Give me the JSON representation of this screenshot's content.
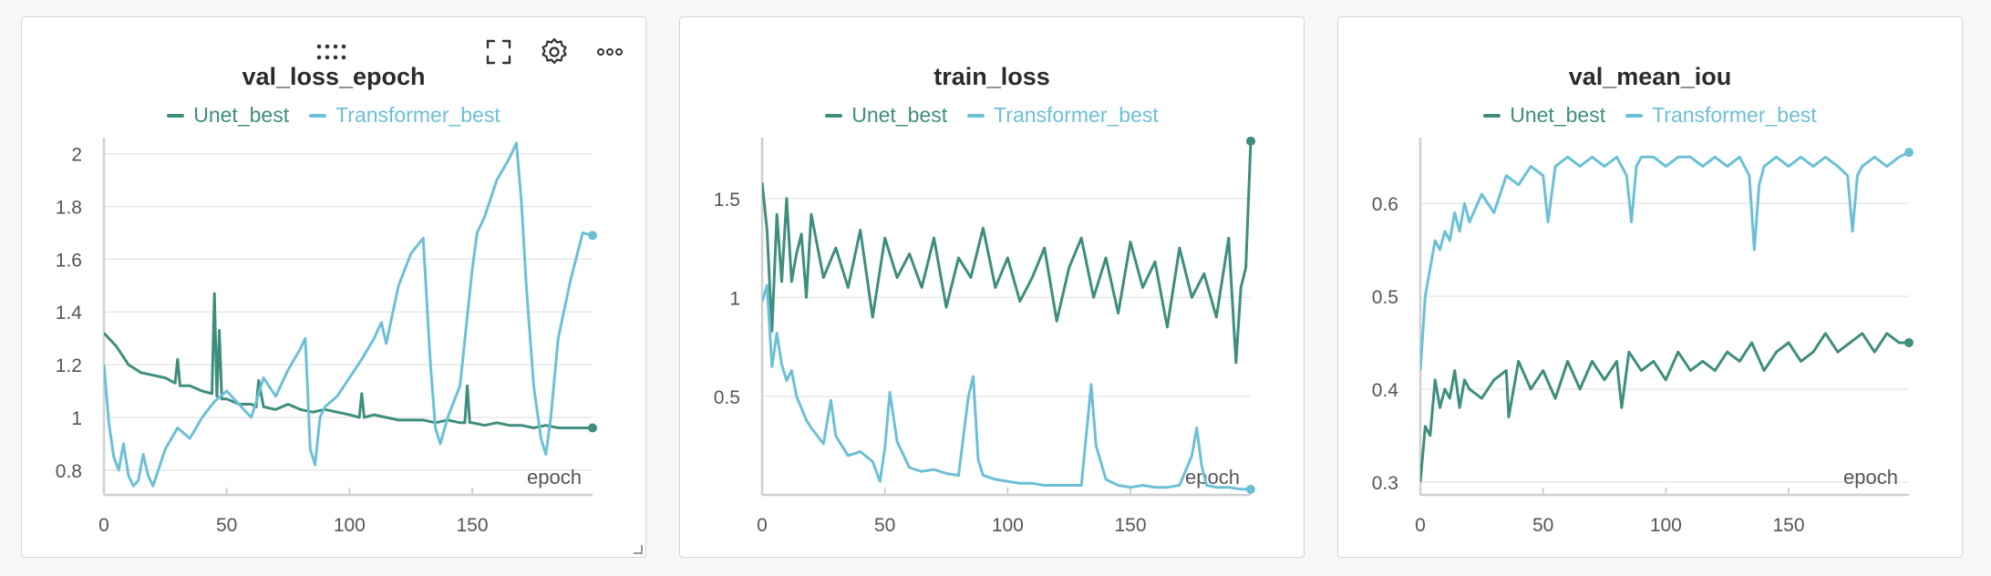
{
  "theme": {
    "unet_color": "#3e8e7e",
    "transformer_color": "#6cc0d6",
    "grid_color": "#e8e8e8",
    "axis_color": "#d0d0d0",
    "tick_text_color": "#555555"
  },
  "panels": [
    {
      "id": "val_loss_epoch",
      "has_toolbar": true
    },
    {
      "id": "train_loss",
      "has_toolbar": false
    },
    {
      "id": "val_mean_iou",
      "has_toolbar": false
    }
  ],
  "toolbar": {
    "drag_icon": "drag-handle-icon",
    "fullscreen_icon": "fullscreen-icon",
    "settings_icon": "gear-icon",
    "more_icon": "more-icon"
  },
  "chart_data": [
    {
      "type": "line",
      "title": "val_loss_epoch",
      "xlabel": "epoch",
      "ylabel": "",
      "xlim": [
        0,
        199
      ],
      "ylim": [
        0.72,
        2.04
      ],
      "x_ticks": [
        "0",
        "50",
        "100",
        "150"
      ],
      "x_tick_values": [
        0,
        50,
        100,
        150
      ],
      "y_ticks": [
        "0.8",
        "1",
        "1.2",
        "1.4",
        "1.6",
        "1.8",
        "2"
      ],
      "y_tick_values": [
        0.8,
        1.0,
        1.2,
        1.4,
        1.6,
        1.8,
        2.0
      ],
      "legend": [
        "Unet_best",
        "Transformer_best"
      ],
      "legend_position": "top-center",
      "grid": true,
      "series": [
        {
          "name": "Unet_best",
          "x": [
            0,
            5,
            10,
            15,
            20,
            25,
            29,
            30,
            31,
            35,
            40,
            44,
            45,
            46,
            47,
            48,
            50,
            55,
            60,
            62,
            63,
            65,
            70,
            75,
            80,
            85,
            90,
            95,
            100,
            104,
            105,
            106,
            110,
            115,
            120,
            125,
            130,
            135,
            140,
            145,
            147,
            148,
            149,
            150,
            155,
            160,
            165,
            170,
            175,
            180,
            185,
            190,
            195,
            199
          ],
          "y": [
            1.32,
            1.27,
            1.2,
            1.17,
            1.16,
            1.15,
            1.13,
            1.22,
            1.12,
            1.12,
            1.1,
            1.09,
            1.47,
            1.08,
            1.33,
            1.07,
            1.07,
            1.05,
            1.05,
            1.04,
            1.14,
            1.04,
            1.03,
            1.05,
            1.03,
            1.02,
            1.03,
            1.02,
            1.01,
            1.0,
            1.09,
            1.0,
            1.01,
            1.0,
            0.99,
            0.99,
            0.99,
            0.98,
            0.99,
            0.98,
            0.98,
            1.12,
            0.98,
            0.98,
            0.97,
            0.98,
            0.97,
            0.97,
            0.96,
            0.97,
            0.96,
            0.96,
            0.96,
            0.96
          ]
        },
        {
          "name": "Transformer_best",
          "x": [
            0,
            2,
            4,
            6,
            8,
            10,
            12,
            14,
            16,
            18,
            20,
            25,
            30,
            35,
            40,
            45,
            50,
            55,
            60,
            65,
            70,
            75,
            80,
            82,
            84,
            86,
            88,
            90,
            95,
            100,
            105,
            110,
            113,
            115,
            120,
            125,
            130,
            133,
            135,
            137,
            140,
            145,
            150,
            152,
            155,
            160,
            165,
            168,
            170,
            172,
            175,
            178,
            180,
            182,
            185,
            190,
            195,
            199
          ],
          "y": [
            1.2,
            0.98,
            0.85,
            0.8,
            0.9,
            0.78,
            0.74,
            0.76,
            0.86,
            0.78,
            0.74,
            0.88,
            0.96,
            0.92,
            1.0,
            1.06,
            1.1,
            1.05,
            1.0,
            1.15,
            1.08,
            1.18,
            1.26,
            1.3,
            0.88,
            0.82,
            1.0,
            1.04,
            1.08,
            1.15,
            1.22,
            1.3,
            1.36,
            1.28,
            1.5,
            1.62,
            1.68,
            1.2,
            0.96,
            0.9,
            1.0,
            1.12,
            1.56,
            1.7,
            1.76,
            1.9,
            1.98,
            2.04,
            1.82,
            1.5,
            1.12,
            0.92,
            0.86,
            1.0,
            1.3,
            1.52,
            1.7,
            1.69
          ]
        }
      ]
    },
    {
      "type": "line",
      "title": "train_loss",
      "xlabel": "epoch",
      "ylabel": "",
      "xlim": [
        0,
        199
      ],
      "ylim": [
        0.02,
        1.78
      ],
      "x_ticks": [
        "0",
        "50",
        "100",
        "150"
      ],
      "x_tick_values": [
        0,
        50,
        100,
        150
      ],
      "y_ticks": [
        "0.5",
        "1",
        "1.5"
      ],
      "y_tick_values": [
        0.5,
        1.0,
        1.5
      ],
      "legend": [
        "Unet_best",
        "Transformer_best"
      ],
      "legend_position": "top-center",
      "grid": true,
      "series": [
        {
          "name": "Unet_best",
          "x": [
            0,
            2,
            4,
            6,
            8,
            10,
            12,
            14,
            16,
            18,
            20,
            25,
            30,
            35,
            40,
            45,
            50,
            55,
            60,
            65,
            70,
            75,
            80,
            85,
            90,
            95,
            100,
            105,
            110,
            115,
            120,
            125,
            130,
            135,
            140,
            145,
            150,
            155,
            160,
            165,
            170,
            175,
            180,
            185,
            190,
            193,
            195,
            197,
            199
          ],
          "y": [
            1.58,
            1.34,
            0.83,
            1.42,
            1.08,
            1.5,
            1.08,
            1.22,
            1.32,
            1.0,
            1.42,
            1.1,
            1.25,
            1.05,
            1.34,
            0.9,
            1.3,
            1.1,
            1.22,
            1.05,
            1.3,
            0.95,
            1.2,
            1.1,
            1.35,
            1.05,
            1.2,
            0.98,
            1.1,
            1.25,
            0.88,
            1.15,
            1.3,
            1.0,
            1.2,
            0.92,
            1.28,
            1.05,
            1.18,
            0.85,
            1.25,
            1.0,
            1.12,
            0.9,
            1.3,
            0.67,
            1.05,
            1.15,
            1.79
          ]
        },
        {
          "name": "Transformer_best",
          "x": [
            0,
            2,
            4,
            6,
            8,
            10,
            12,
            14,
            16,
            18,
            20,
            25,
            28,
            30,
            35,
            40,
            45,
            48,
            50,
            52,
            55,
            60,
            65,
            70,
            75,
            80,
            84,
            86,
            88,
            90,
            95,
            100,
            105,
            110,
            115,
            120,
            125,
            130,
            132,
            134,
            136,
            140,
            145,
            150,
            155,
            160,
            165,
            170,
            175,
            177,
            179,
            181,
            185,
            190,
            195,
            199
          ],
          "y": [
            0.98,
            1.06,
            0.65,
            0.82,
            0.66,
            0.58,
            0.63,
            0.5,
            0.44,
            0.38,
            0.34,
            0.26,
            0.48,
            0.3,
            0.2,
            0.22,
            0.17,
            0.07,
            0.24,
            0.52,
            0.27,
            0.14,
            0.12,
            0.13,
            0.11,
            0.1,
            0.5,
            0.6,
            0.18,
            0.1,
            0.08,
            0.07,
            0.06,
            0.06,
            0.05,
            0.05,
            0.05,
            0.05,
            0.3,
            0.56,
            0.25,
            0.08,
            0.05,
            0.04,
            0.05,
            0.04,
            0.04,
            0.05,
            0.2,
            0.34,
            0.15,
            0.05,
            0.04,
            0.04,
            0.03,
            0.03
          ]
        }
      ]
    },
    {
      "type": "line",
      "title": "val_mean_iou",
      "xlabel": "epoch",
      "ylabel": "",
      "xlim": [
        0,
        199
      ],
      "ylim": [
        0.29,
        0.665
      ],
      "x_ticks": [
        "0",
        "50",
        "100",
        "150"
      ],
      "x_tick_values": [
        0,
        50,
        100,
        150
      ],
      "y_ticks": [
        "0.3",
        "0.4",
        "0.5",
        "0.6"
      ],
      "y_tick_values": [
        0.3,
        0.4,
        0.5,
        0.6
      ],
      "legend": [
        "Unet_best",
        "Transformer_best"
      ],
      "legend_position": "top-center",
      "grid": true,
      "series": [
        {
          "name": "Unet_best",
          "x": [
            0,
            2,
            4,
            6,
            8,
            10,
            12,
            14,
            16,
            18,
            20,
            25,
            30,
            35,
            36,
            40,
            45,
            50,
            55,
            60,
            65,
            70,
            75,
            80,
            82,
            85,
            90,
            95,
            100,
            105,
            110,
            115,
            120,
            125,
            130,
            135,
            140,
            145,
            150,
            155,
            160,
            165,
            170,
            175,
            180,
            185,
            190,
            195,
            199
          ],
          "y": [
            0.3,
            0.36,
            0.35,
            0.41,
            0.38,
            0.4,
            0.39,
            0.42,
            0.38,
            0.41,
            0.4,
            0.39,
            0.41,
            0.42,
            0.37,
            0.43,
            0.4,
            0.42,
            0.39,
            0.43,
            0.4,
            0.43,
            0.41,
            0.43,
            0.38,
            0.44,
            0.42,
            0.43,
            0.41,
            0.44,
            0.42,
            0.43,
            0.42,
            0.44,
            0.43,
            0.45,
            0.42,
            0.44,
            0.45,
            0.43,
            0.44,
            0.46,
            0.44,
            0.45,
            0.46,
            0.44,
            0.46,
            0.45,
            0.45
          ]
        },
        {
          "name": "Transformer_best",
          "x": [
            0,
            2,
            4,
            6,
            8,
            10,
            12,
            14,
            16,
            18,
            20,
            25,
            30,
            35,
            40,
            45,
            50,
            52,
            55,
            60,
            65,
            70,
            75,
            80,
            84,
            86,
            88,
            90,
            95,
            100,
            105,
            110,
            115,
            120,
            125,
            130,
            134,
            136,
            138,
            140,
            145,
            150,
            155,
            160,
            165,
            170,
            174,
            176,
            178,
            180,
            185,
            190,
            195,
            199
          ],
          "y": [
            0.42,
            0.5,
            0.53,
            0.56,
            0.55,
            0.57,
            0.56,
            0.59,
            0.57,
            0.6,
            0.58,
            0.61,
            0.59,
            0.63,
            0.62,
            0.64,
            0.63,
            0.58,
            0.64,
            0.65,
            0.64,
            0.65,
            0.64,
            0.65,
            0.63,
            0.58,
            0.64,
            0.65,
            0.65,
            0.64,
            0.65,
            0.65,
            0.64,
            0.65,
            0.64,
            0.65,
            0.63,
            0.55,
            0.62,
            0.64,
            0.65,
            0.64,
            0.65,
            0.64,
            0.65,
            0.64,
            0.63,
            0.57,
            0.63,
            0.64,
            0.65,
            0.64,
            0.65,
            0.655
          ]
        }
      ]
    }
  ]
}
